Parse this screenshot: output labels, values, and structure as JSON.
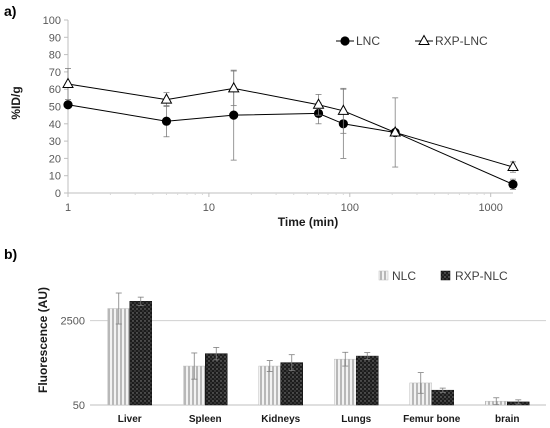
{
  "chart_data": [
    {
      "panel_label": "a)",
      "type": "line",
      "xscale": "log",
      "xlabel": "Time (min)",
      "ylabel": "%ID/g",
      "xlim": [
        1,
        1440
      ],
      "ylim": [
        0,
        100
      ],
      "xticks": [
        "1",
        "10",
        "100",
        "1000"
      ],
      "yticks": [
        "0",
        "10",
        "20",
        "30",
        "40",
        "50",
        "60",
        "70",
        "80",
        "90",
        "100"
      ],
      "grid": false,
      "legend_position": "top-right",
      "series": [
        {
          "name": "LNC",
          "color": "#000000",
          "marker": "filled-circle",
          "x": [
            1,
            5,
            15,
            60,
            90,
            210,
            1440
          ],
          "y": [
            51,
            41.5,
            45,
            46,
            40,
            35,
            5
          ],
          "err": [
            0,
            9,
            26,
            6,
            20,
            0,
            3
          ]
        },
        {
          "name": "RXP-LNC",
          "color": "#000000",
          "marker": "open-triangle",
          "x": [
            1,
            5,
            15,
            60,
            90,
            210,
            1440
          ],
          "y": [
            63,
            54,
            60.5,
            51,
            47.5,
            35,
            15
          ],
          "err": [
            9,
            4,
            10,
            6,
            13,
            20,
            3
          ]
        }
      ]
    },
    {
      "panel_label": "b)",
      "type": "bar",
      "ylabel": "Fluorescence (AU)",
      "yticks": [
        "50",
        "2500"
      ],
      "ylim": [
        50,
        4200
      ],
      "grid": true,
      "legend_position": "top-right",
      "categories": [
        "Liver",
        "Spleen",
        "Kidneys",
        "Lungs",
        "Femur bone",
        "brain"
      ],
      "series": [
        {
          "name": "NLC",
          "color": "#c8c8c8",
          "pattern": "vertical-stripes",
          "values": [
            2850,
            1180,
            1180,
            1380,
            690,
            160
          ],
          "err": [
            450,
            380,
            160,
            200,
            300,
            100
          ]
        },
        {
          "name": "RXP-NLC",
          "color": "#1a1a1a",
          "pattern": "dots",
          "values": [
            3060,
            1540,
            1280,
            1470,
            480,
            140
          ],
          "err": [
            120,
            180,
            230,
            100,
            60,
            60
          ]
        }
      ]
    }
  ]
}
